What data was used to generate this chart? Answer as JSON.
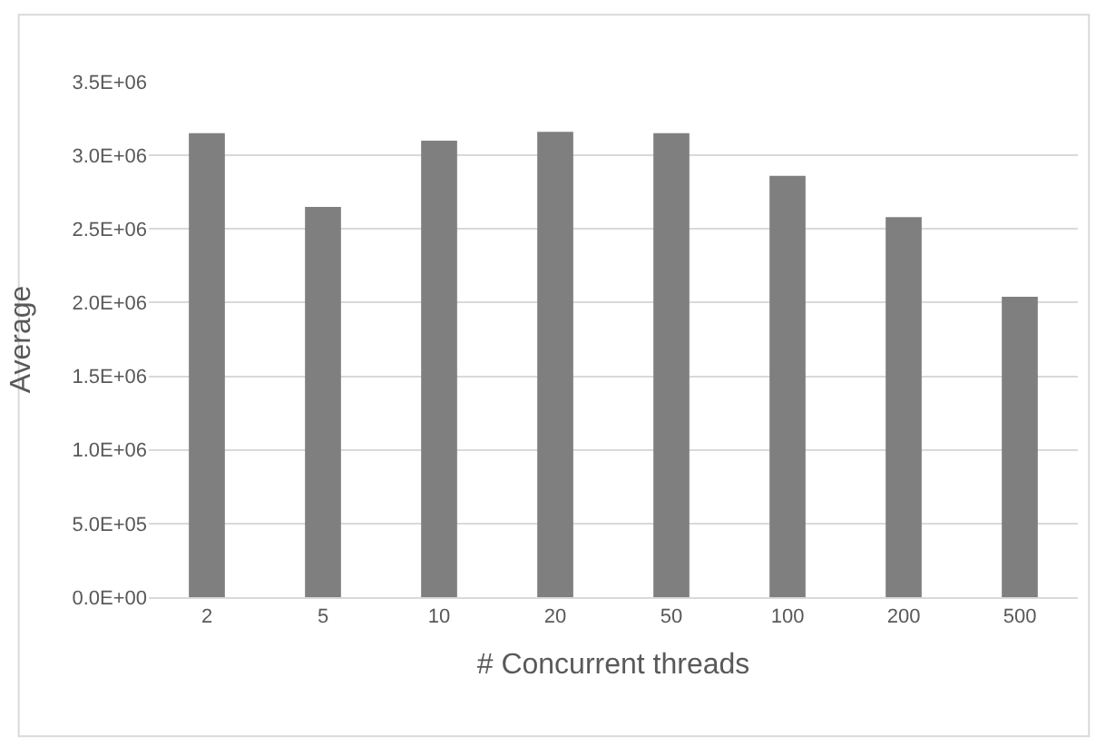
{
  "chart_data": {
    "type": "bar",
    "xlabel": "# Concurrent threads",
    "ylabel": "Average",
    "categories": [
      "2",
      "5",
      "10",
      "20",
      "50",
      "100",
      "200",
      "500"
    ],
    "values": [
      3150000,
      2650000,
      3100000,
      3160000,
      3150000,
      2860000,
      2580000,
      2040000
    ],
    "color": "#7f7f7f",
    "ylim": [
      0,
      3500000
    ],
    "yticks": [
      {
        "value": 0,
        "label": "0.0E+00"
      },
      {
        "value": 500000,
        "label": "5.0E+05"
      },
      {
        "value": 1000000,
        "label": "1.0E+06"
      },
      {
        "value": 1500000,
        "label": "1.5E+06"
      },
      {
        "value": 2000000,
        "label": "2.0E+06"
      },
      {
        "value": 2500000,
        "label": "2.5E+06"
      },
      {
        "value": 3000000,
        "label": "3.0E+06"
      },
      {
        "value": 3500000,
        "label": "3.5E+06"
      }
    ],
    "grid": "y"
  }
}
